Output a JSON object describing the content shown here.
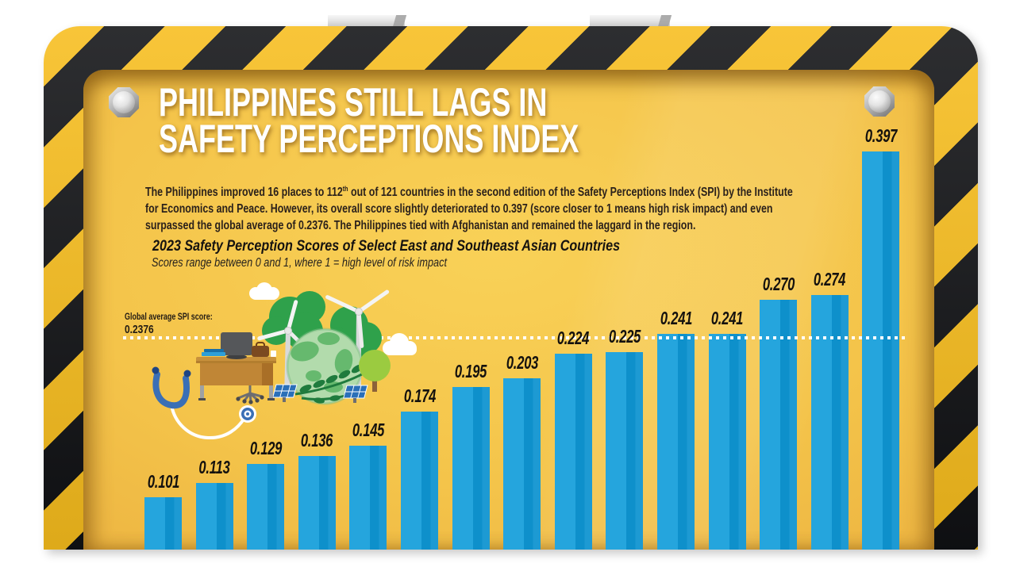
{
  "header": {
    "title_line1": "PHILIPPINES STILL LAGS IN",
    "title_line2": "SAFETY PERCEPTIONS INDEX"
  },
  "intro": {
    "line1_pre": "The Philippines improved 16 places to 112",
    "line1_sup": "th",
    "line1_post": " out of 121 countries in the second edition of the Safety Perceptions Index (SPI) by the Institute",
    "line2": "for Economics and Peace. However, its overall score slightly deteriorated to 0.397 (score closer to 1 means high risk impact) and even",
    "line3": "surpassed the global average of 0.2376. The Philippines tied with Afghanistan and remained the laggard in the region."
  },
  "chart_data": {
    "type": "bar",
    "title": "2023 Safety Perception Scores of Select East and Southeast Asian Countries",
    "subtitle": "Scores range between 0 and 1, where 1 = high level of risk impact",
    "values": [
      0.101,
      0.113,
      0.129,
      0.136,
      0.145,
      0.174,
      0.195,
      0.203,
      0.224,
      0.225,
      0.241,
      0.241,
      0.27,
      0.274,
      0.397
    ],
    "value_labels": [
      "0.101",
      "0.113",
      "0.129",
      "0.136",
      "0.145",
      "0.174",
      "0.195",
      "0.203",
      "0.224",
      "0.225",
      "0.241",
      "0.241",
      "0.270",
      "0.274",
      "0.397"
    ],
    "x_tick_labels": [],
    "reference_line": {
      "label": "Global average SPI score:",
      "value_label": "0.2376",
      "value": 0.2376
    },
    "ylim": [
      0,
      0.45
    ],
    "bar_color": "#1D9AD3",
    "legend": "none",
    "grid": "off"
  },
  "decor": {
    "border_yellow": "#F7BD1D",
    "border_black": "#101114",
    "panel_yellow": "#F4C44A",
    "title_color": "#FFFFFF",
    "dotline_color": "#FFFFFF",
    "illustration_items": [
      "stethoscope",
      "office-desk",
      "computer-monitor",
      "office-chair",
      "books",
      "briefcase",
      "green-globe",
      "leaf-branch",
      "trees",
      "wind-turbines",
      "solar-panels",
      "clouds"
    ]
  }
}
